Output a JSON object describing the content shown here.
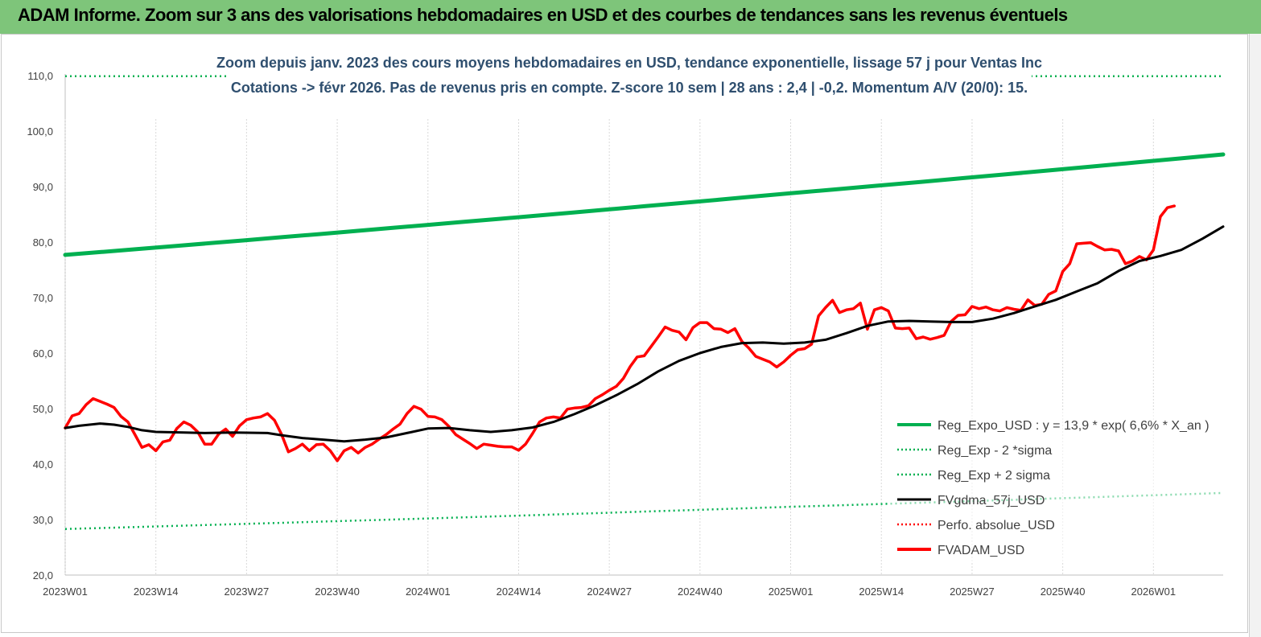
{
  "header": {
    "title": "ADAM Informe. Zoom sur 3 ans des valorisations hebdomadaires en USD et des courbes de tendances sans les revenus éventuels",
    "background": "#7ec57a"
  },
  "chart_data": {
    "type": "line",
    "title_lines": [
      "Zoom depuis janv. 2023 des cours moyens hebdomadaires en USD, tendance exponentielle, lissage 57 j pour Ventas Inc",
      "Cotations -> févr 2026.  Pas de revenus pris en compte. Z-score 10 sem  | 28 ans : 2,4  | -0,2. Momentum A/V (20/0): 15."
    ],
    "ylim": [
      20,
      110
    ],
    "yticks": [
      "20,0",
      "30,0",
      "40,0",
      "50,0",
      "60,0",
      "70,0",
      "80,0",
      "90,0",
      "100,0",
      "110,0"
    ],
    "x_tick_labels": [
      "2023W01",
      "2023W14",
      "2023W27",
      "2023W40",
      "2024W01",
      "2024W14",
      "2024W27",
      "2024W40",
      "2025W01",
      "2025W14",
      "2025W27",
      "2025W40",
      "2026W01"
    ],
    "x_tick_weeks": [
      0,
      13,
      26,
      39,
      52,
      65,
      78,
      91,
      104,
      117,
      130,
      143,
      156
    ],
    "week_count": 166,
    "legend": [
      {
        "name": "Reg_Expo_USD : y = 13,9 * exp( 6,6% *  X_an )",
        "color": "#00b050",
        "style": "solid-thick"
      },
      {
        "name": "Reg_Exp - 2 *sigma",
        "color": "#00b050",
        "style": "dotted"
      },
      {
        "name": "Reg_Exp + 2 sigma",
        "color": "#00b050",
        "style": "dotted"
      },
      {
        "name": "FVgdma_57j_USD",
        "color": "#000000",
        "style": "solid"
      },
      {
        "name": "Perfo. absolue_USD",
        "color": "#ff0000",
        "style": "dotted"
      },
      {
        "name": "FVADAM_USD",
        "color": "#ff0000",
        "style": "solid-thick"
      }
    ],
    "series": [
      {
        "name": "Reg_Expo_USD : y = 13,9 * exp( 6,6% *  X_an )",
        "color": "#00b050",
        "points": [
          [
            0,
            77.7
          ],
          [
            52,
            83.1
          ],
          [
            104,
            88.8
          ],
          [
            166,
            95.8
          ]
        ]
      },
      {
        "name": "Reg_Exp - 2 *sigma",
        "color": "#00b050",
        "points": [
          [
            0,
            28.3
          ],
          [
            52,
            30.2
          ],
          [
            104,
            32.3
          ],
          [
            166,
            34.8
          ]
        ]
      },
      {
        "name": "Reg_Exp + 2 sigma",
        "color": "#00b050",
        "points": [
          [
            0,
            109.9
          ],
          [
            166,
            109.9
          ]
        ]
      },
      {
        "name": "FVgdma_57j_USD",
        "color": "#000000",
        "points": [
          [
            0,
            46.5
          ],
          [
            2,
            46.9
          ],
          [
            5,
            47.3
          ],
          [
            7,
            47.1
          ],
          [
            9,
            46.7
          ],
          [
            11,
            46.1
          ],
          [
            13,
            45.8
          ],
          [
            17,
            45.7
          ],
          [
            20,
            45.6
          ],
          [
            24,
            45.7
          ],
          [
            29,
            45.6
          ],
          [
            31,
            45.2
          ],
          [
            34,
            44.7
          ],
          [
            37,
            44.4
          ],
          [
            40,
            44.1
          ],
          [
            43,
            44.4
          ],
          [
            46,
            44.8
          ],
          [
            49,
            45.6
          ],
          [
            52,
            46.4
          ],
          [
            55,
            46.5
          ],
          [
            58,
            46.1
          ],
          [
            61,
            45.8
          ],
          [
            64,
            46.1
          ],
          [
            67,
            46.6
          ],
          [
            70,
            47.6
          ],
          [
            73,
            49.0
          ],
          [
            76,
            50.6
          ],
          [
            79,
            52.4
          ],
          [
            82,
            54.4
          ],
          [
            85,
            56.7
          ],
          [
            88,
            58.6
          ],
          [
            91,
            60.0
          ],
          [
            94,
            61.1
          ],
          [
            97,
            61.8
          ],
          [
            100,
            61.9
          ],
          [
            103,
            61.7
          ],
          [
            106,
            61.9
          ],
          [
            109,
            62.4
          ],
          [
            112,
            63.6
          ],
          [
            115,
            64.9
          ],
          [
            118,
            65.7
          ],
          [
            121,
            65.8
          ],
          [
            124,
            65.7
          ],
          [
            127,
            65.6
          ],
          [
            130,
            65.6
          ],
          [
            133,
            66.2
          ],
          [
            136,
            67.2
          ],
          [
            139,
            68.4
          ],
          [
            142,
            69.6
          ],
          [
            145,
            71.1
          ],
          [
            148,
            72.6
          ],
          [
            151,
            74.8
          ],
          [
            154,
            76.6
          ],
          [
            157,
            77.5
          ],
          [
            160,
            78.6
          ],
          [
            163,
            80.6
          ],
          [
            166,
            82.8
          ]
        ]
      },
      {
        "name": "FVADAM_USD",
        "color": "#ff0000",
        "points": [
          [
            0,
            46.5
          ],
          [
            1,
            48.7
          ],
          [
            2,
            49.1
          ],
          [
            3,
            50.7
          ],
          [
            4,
            51.8
          ],
          [
            5,
            51.3
          ],
          [
            6,
            50.8
          ],
          [
            7,
            50.2
          ],
          [
            8,
            48.6
          ],
          [
            9,
            47.6
          ],
          [
            10,
            45.3
          ],
          [
            11,
            43.0
          ],
          [
            12,
            43.5
          ],
          [
            13,
            42.4
          ],
          [
            14,
            44.0
          ],
          [
            15,
            44.3
          ],
          [
            16,
            46.4
          ],
          [
            17,
            47.6
          ],
          [
            18,
            47.0
          ],
          [
            19,
            45.8
          ],
          [
            20,
            43.6
          ],
          [
            21,
            43.6
          ],
          [
            22,
            45.4
          ],
          [
            23,
            46.3
          ],
          [
            24,
            45.0
          ],
          [
            25,
            46.9
          ],
          [
            26,
            48.0
          ],
          [
            27,
            48.3
          ],
          [
            28,
            48.5
          ],
          [
            29,
            49.1
          ],
          [
            30,
            47.9
          ],
          [
            31,
            45.4
          ],
          [
            32,
            42.2
          ],
          [
            33,
            42.8
          ],
          [
            34,
            43.6
          ],
          [
            35,
            42.4
          ],
          [
            36,
            43.5
          ],
          [
            37,
            43.6
          ],
          [
            38,
            42.4
          ],
          [
            39,
            40.6
          ],
          [
            40,
            42.4
          ],
          [
            41,
            43.0
          ],
          [
            42,
            42.0
          ],
          [
            43,
            43.0
          ],
          [
            44,
            43.6
          ],
          [
            45,
            44.5
          ],
          [
            46,
            45.3
          ],
          [
            47,
            46.3
          ],
          [
            48,
            47.2
          ],
          [
            49,
            49.1
          ],
          [
            50,
            50.4
          ],
          [
            51,
            49.9
          ],
          [
            52,
            48.6
          ],
          [
            53,
            48.5
          ],
          [
            54,
            48.0
          ],
          [
            55,
            46.8
          ],
          [
            56,
            45.3
          ],
          [
            57,
            44.5
          ],
          [
            58,
            43.7
          ],
          [
            59,
            42.8
          ],
          [
            60,
            43.6
          ],
          [
            61,
            43.4
          ],
          [
            62,
            43.2
          ],
          [
            63,
            43.1
          ],
          [
            64,
            43.1
          ],
          [
            65,
            42.5
          ],
          [
            66,
            43.6
          ],
          [
            67,
            45.5
          ],
          [
            68,
            47.6
          ],
          [
            69,
            48.3
          ],
          [
            70,
            48.5
          ],
          [
            71,
            48.3
          ],
          [
            72,
            49.9
          ],
          [
            73,
            50.1
          ],
          [
            74,
            50.2
          ],
          [
            75,
            50.5
          ],
          [
            76,
            51.8
          ],
          [
            77,
            52.5
          ],
          [
            78,
            53.3
          ],
          [
            79,
            54.0
          ],
          [
            80,
            55.4
          ],
          [
            81,
            57.6
          ],
          [
            82,
            59.3
          ],
          [
            83,
            59.5
          ],
          [
            84,
            61.2
          ],
          [
            85,
            62.9
          ],
          [
            86,
            64.7
          ],
          [
            87,
            64.1
          ],
          [
            88,
            63.8
          ],
          [
            89,
            62.4
          ],
          [
            90,
            64.6
          ],
          [
            91,
            65.5
          ],
          [
            92,
            65.5
          ],
          [
            93,
            64.4
          ],
          [
            94,
            64.3
          ],
          [
            95,
            63.7
          ],
          [
            96,
            64.4
          ],
          [
            97,
            62.1
          ],
          [
            98,
            60.9
          ],
          [
            99,
            59.4
          ],
          [
            100,
            58.9
          ],
          [
            101,
            58.4
          ],
          [
            102,
            57.5
          ],
          [
            103,
            58.4
          ],
          [
            104,
            59.6
          ],
          [
            105,
            60.6
          ],
          [
            106,
            60.8
          ],
          [
            107,
            61.6
          ],
          [
            108,
            66.7
          ],
          [
            109,
            68.2
          ],
          [
            110,
            69.5
          ],
          [
            111,
            67.3
          ],
          [
            112,
            67.8
          ],
          [
            113,
            68.0
          ],
          [
            114,
            69.0
          ],
          [
            115,
            64.3
          ],
          [
            116,
            67.8
          ],
          [
            117,
            68.2
          ],
          [
            118,
            67.6
          ],
          [
            119,
            64.5
          ],
          [
            120,
            64.4
          ],
          [
            121,
            64.5
          ],
          [
            122,
            62.6
          ],
          [
            123,
            62.9
          ],
          [
            124,
            62.5
          ],
          [
            125,
            62.8
          ],
          [
            126,
            63.2
          ],
          [
            127,
            65.7
          ],
          [
            128,
            66.8
          ],
          [
            129,
            66.9
          ],
          [
            130,
            68.4
          ],
          [
            131,
            68.0
          ],
          [
            132,
            68.3
          ],
          [
            133,
            67.8
          ],
          [
            134,
            67.6
          ],
          [
            135,
            68.2
          ],
          [
            136,
            67.9
          ],
          [
            137,
            67.7
          ],
          [
            138,
            69.6
          ],
          [
            139,
            68.6
          ],
          [
            140,
            68.8
          ],
          [
            141,
            70.6
          ],
          [
            142,
            71.2
          ],
          [
            143,
            74.7
          ],
          [
            144,
            76.1
          ],
          [
            145,
            79.7
          ],
          [
            146,
            79.8
          ],
          [
            147,
            79.9
          ],
          [
            148,
            79.2
          ],
          [
            149,
            78.6
          ],
          [
            150,
            78.7
          ],
          [
            151,
            78.4
          ],
          [
            152,
            76.1
          ],
          [
            153,
            76.6
          ],
          [
            154,
            77.4
          ],
          [
            155,
            76.8
          ],
          [
            156,
            78.6
          ],
          [
            157,
            84.6
          ],
          [
            158,
            86.2
          ],
          [
            159,
            86.5
          ]
        ]
      }
    ]
  }
}
